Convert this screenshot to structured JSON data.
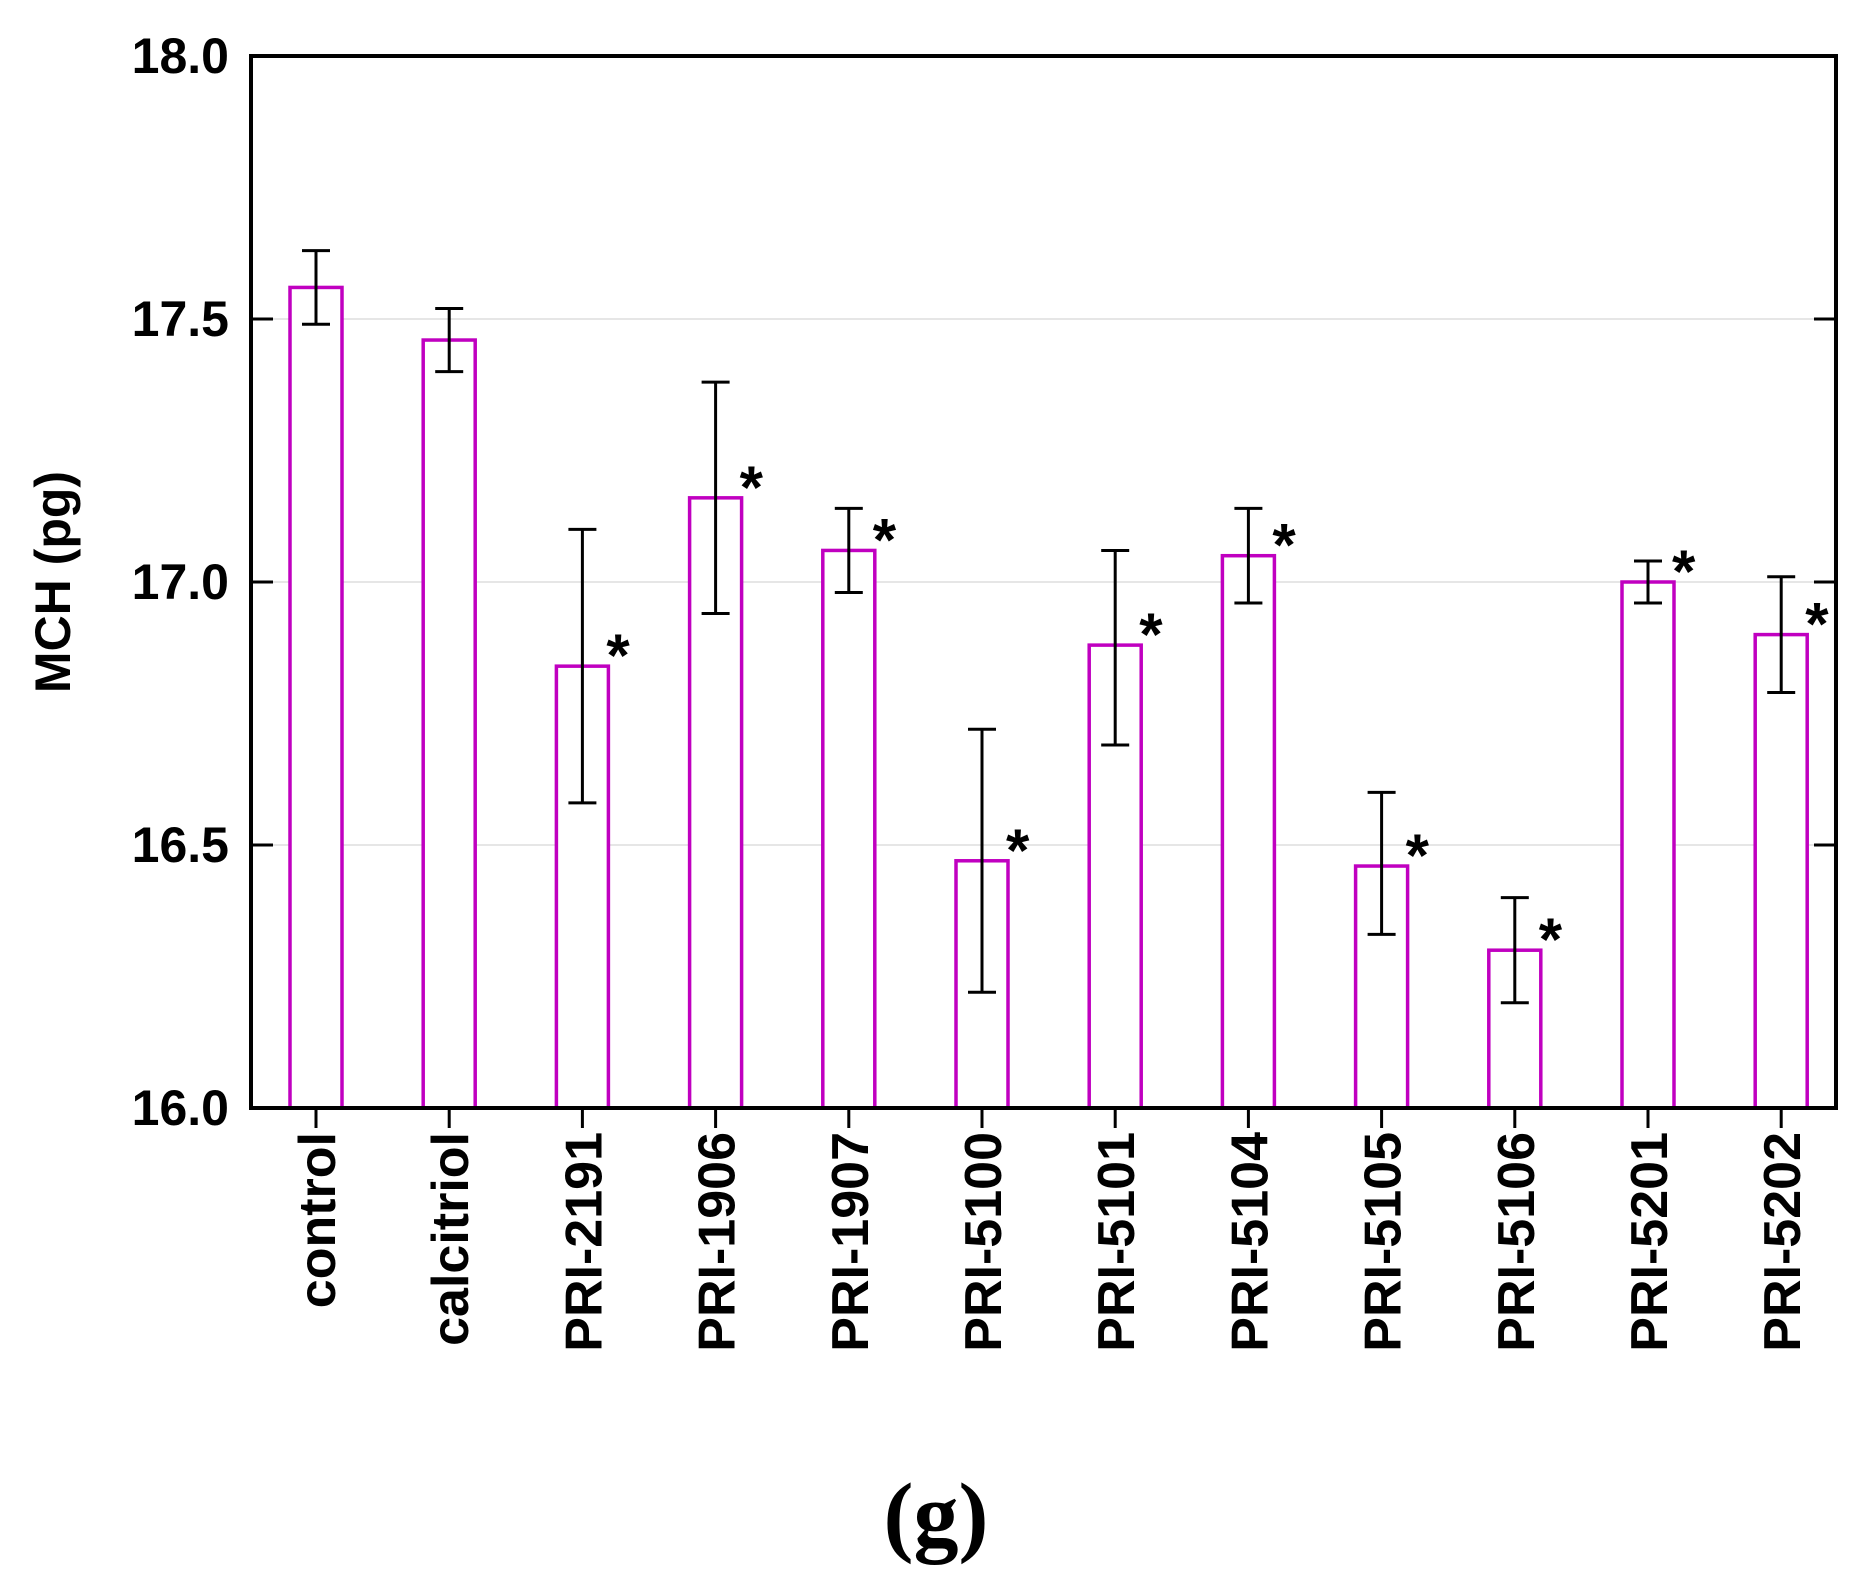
{
  "chart_data": {
    "type": "bar",
    "title": "",
    "panel_label": "(g)",
    "xlabel": "",
    "ylabel": "MCH (pg)",
    "ylim": [
      16.0,
      18.0
    ],
    "yticks": [
      "16.0",
      "16.5",
      "17.0",
      "17.5",
      "18.0"
    ],
    "grid": "horizontal",
    "bar_color": "#C000C0",
    "categories": [
      "control",
      "calcitriol",
      "PRI-2191",
      "PRI-1906",
      "PRI-1907",
      "PRI-5100",
      "PRI-5101",
      "PRI-5104",
      "PRI-5105",
      "PRI-5106",
      "PRI-5201",
      "PRI-5202"
    ],
    "values": [
      17.56,
      17.46,
      16.84,
      17.16,
      17.06,
      16.47,
      16.88,
      17.05,
      16.46,
      16.3,
      17.0,
      16.9
    ],
    "error_low": [
      17.49,
      17.4,
      16.58,
      16.94,
      16.98,
      16.22,
      16.69,
      16.96,
      16.33,
      16.2,
      16.96,
      16.79
    ],
    "error_high": [
      17.63,
      17.52,
      17.1,
      17.38,
      17.14,
      16.72,
      17.06,
      17.14,
      16.6,
      16.4,
      17.04,
      17.01
    ],
    "significance": [
      "",
      "",
      "*",
      "*",
      "*",
      "*",
      "*",
      "*",
      "*",
      "*",
      "*",
      "*"
    ]
  }
}
